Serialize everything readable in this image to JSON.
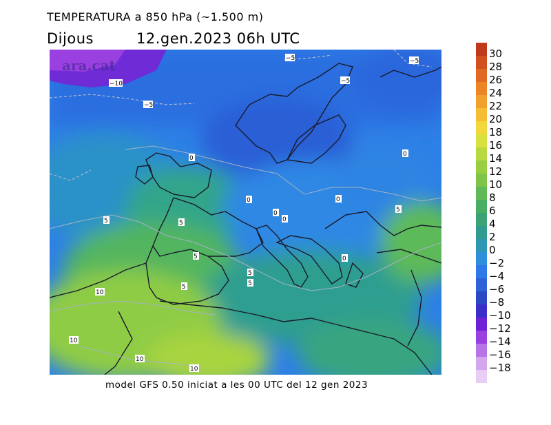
{
  "title": {
    "line1": "TEMPERATURA a 850 hPa (~1.500 m)",
    "day": "Dijous",
    "datetime": "12.gen.2023 06h UTC"
  },
  "watermark": "ara.cat",
  "footer": "model GFS 0.50 iniciat a les 00 UTC del 12 gen 2023",
  "legend": {
    "labels": [
      "30",
      "28",
      "26",
      "24",
      "22",
      "20",
      "18",
      "16",
      "14",
      "12",
      "10",
      "8",
      "6",
      "4",
      "2",
      "0",
      "−2",
      "−4",
      "−6",
      "−8",
      "−10",
      "−12",
      "−14",
      "−16",
      "−18"
    ],
    "colors": [
      "#c0391a",
      "#d24f1e",
      "#e06a22",
      "#eb8526",
      "#f0a12c",
      "#f4bd33",
      "#f2d83c",
      "#d8e13f",
      "#b7d93f",
      "#9ace42",
      "#7ec449",
      "#5fb956",
      "#4aad66",
      "#3ba276",
      "#2f9a8d",
      "#2d98b4",
      "#2f8fdc",
      "#2f78e8",
      "#2e62d8",
      "#2a49c4",
      "#3a2ec8",
      "#6e20d6",
      "#9a3fe0",
      "#b874e6",
      "#d4a6ee",
      "#e8cdf5"
    ]
  },
  "contour_labels": [
    {
      "text": "−5"
    },
    {
      "text": "−5"
    },
    {
      "text": "−5"
    },
    {
      "text": "−10"
    },
    {
      "text": "−5"
    },
    {
      "text": "0"
    },
    {
      "text": "0"
    },
    {
      "text": "0"
    },
    {
      "text": "0"
    },
    {
      "text": "0"
    },
    {
      "text": "0"
    },
    {
      "text": "0"
    },
    {
      "text": "5"
    },
    {
      "text": "5"
    },
    {
      "text": "5"
    },
    {
      "text": "5"
    },
    {
      "text": "5"
    },
    {
      "text": "5"
    },
    {
      "text": "5"
    },
    {
      "text": "10"
    },
    {
      "text": "10"
    },
    {
      "text": "10"
    },
    {
      "text": "10"
    }
  ]
}
